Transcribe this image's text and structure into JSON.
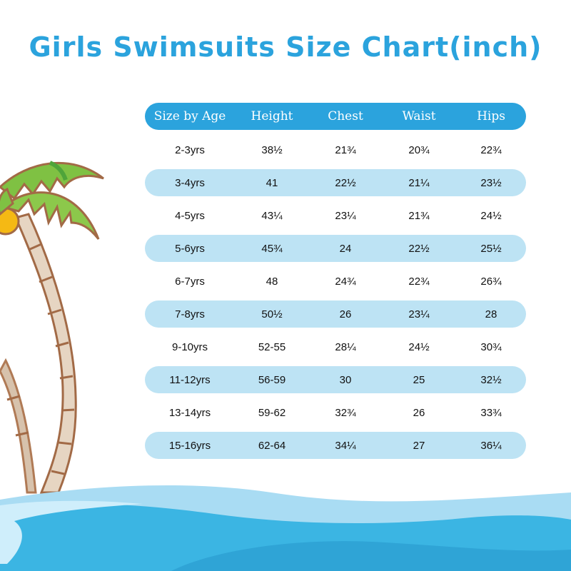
{
  "title": "Girls Swimsuits Size Chart(inch)",
  "colors": {
    "accent": "#2ba3dd",
    "row_alt": "#bde3f4",
    "water_dark": "#3bb5e3",
    "water_light": "#a9dcf3",
    "leaf_green": "#7fc143",
    "coconut": "#f5b914"
  },
  "table": {
    "headers": [
      "Size by Age",
      "Height",
      "Chest",
      "Waist",
      "Hips"
    ],
    "rows": [
      [
        "2-3yrs",
        "38½",
        "21¾",
        "20¾",
        "22¾"
      ],
      [
        "3-4yrs",
        "41",
        "22½",
        "21¼",
        "23½"
      ],
      [
        "4-5yrs",
        "43¼",
        "23¼",
        "21¾",
        "24½"
      ],
      [
        "5-6yrs",
        "45¾",
        "24",
        "22½",
        "25½"
      ],
      [
        "6-7yrs",
        "48",
        "24¾",
        "22¾",
        "26¾"
      ],
      [
        "7-8yrs",
        "50½",
        "26",
        "23¼",
        "28"
      ],
      [
        "9-10yrs",
        "52-55",
        "28¼",
        "24½",
        "30¾"
      ],
      [
        "11-12yrs",
        "56-59",
        "30",
        "25",
        "32½"
      ],
      [
        "13-14yrs",
        "59-62",
        "32¾",
        "26",
        "33¾"
      ],
      [
        "15-16yrs",
        "62-64",
        "34¼",
        "27",
        "36¼"
      ]
    ]
  }
}
